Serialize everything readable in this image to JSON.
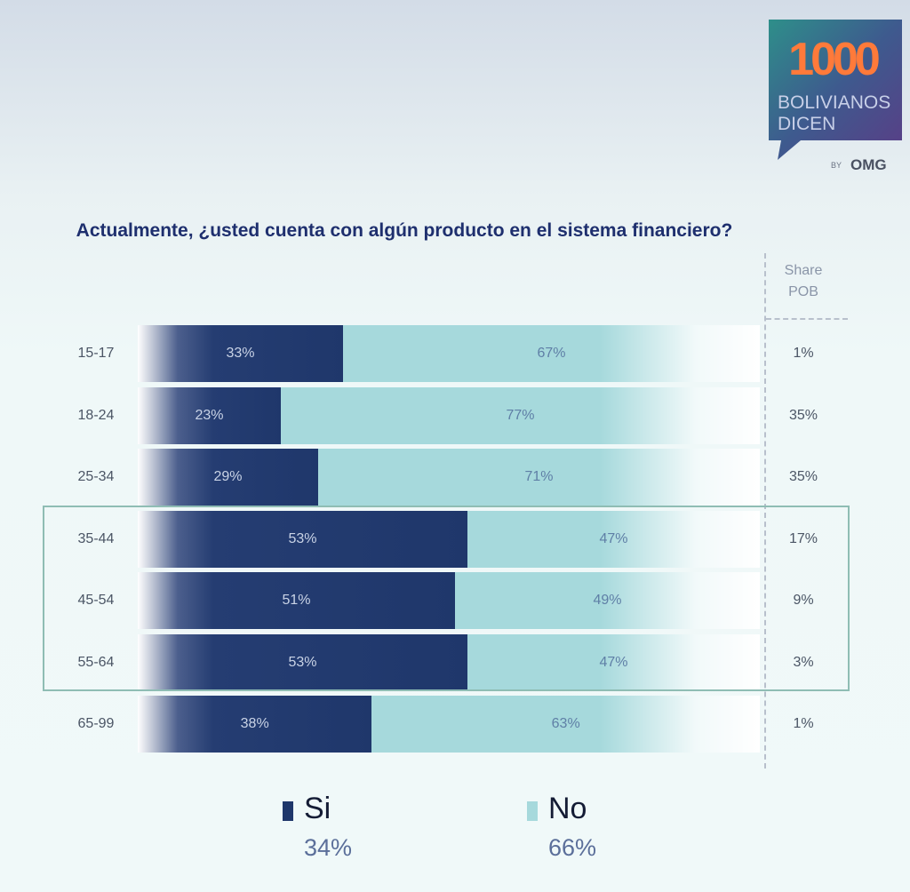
{
  "logo": {
    "number": "1000",
    "line1": "BOLIVIANOS",
    "line2": "DICEN",
    "by": "BY",
    "brand": "OMG"
  },
  "chart_data": {
    "type": "bar",
    "stacked": true,
    "orientation": "horizontal",
    "title": "Actualmente, ¿usted cuenta con algún producto en el sistema financiero?",
    "categories": [
      "15-17",
      "18-24",
      "25-34",
      "35-44",
      "45-54",
      "55-64",
      "65-99"
    ],
    "series": [
      {
        "name": "Si",
        "values": [
          33,
          23,
          29,
          53,
          51,
          53,
          38
        ],
        "labels": [
          "33%",
          "23%",
          "29%",
          "53%",
          "51%",
          "53%",
          "38%"
        ],
        "color": "#1f376b"
      },
      {
        "name": "No",
        "values": [
          67,
          77,
          71,
          47,
          49,
          47,
          63
        ],
        "labels": [
          "67%",
          "77%",
          "71%",
          "47%",
          "49%",
          "47%",
          "63%"
        ],
        "color": "#a6d9dc"
      }
    ],
    "share_header": [
      "Share",
      "POB"
    ],
    "share_pob": [
      "1%",
      "35%",
      "35%",
      "17%",
      "9%",
      "3%",
      "1%"
    ],
    "highlighted_categories": [
      "35-44",
      "45-54",
      "55-64"
    ],
    "legend": [
      {
        "name": "Si",
        "total": "34%",
        "color": "#1f376b"
      },
      {
        "name": "No",
        "total": "66%",
        "color": "#a6d9dc"
      }
    ],
    "grid": false,
    "legend_position": "bottom"
  }
}
